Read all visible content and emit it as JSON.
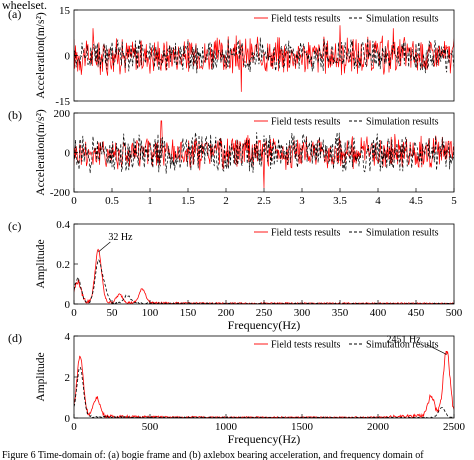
{
  "header_text": "wheelset.",
  "footer_text": "Figure 6 Time-domain of: (a) bogie frame and (b) axlebox bearing acceleration, and frequency domain of",
  "chart_data": [
    {
      "panel": "(a)",
      "type": "line",
      "xlabel": "",
      "ylabel": "Acceleration(m/s²)",
      "xlim": [
        0,
        5
      ],
      "ylim": [
        -15,
        15
      ],
      "yticks": [
        -15,
        0,
        15
      ],
      "xticks": [],
      "legend": "top-right",
      "series": [
        {
          "name": "Field tests results",
          "color": "#ff0000",
          "style": "solid",
          "amplitude": 6,
          "peaks": [
            [
              2.2,
              -12
            ],
            [
              0.25,
              9
            ],
            [
              3.5,
              10
            ],
            [
              4.2,
              9
            ]
          ]
        },
        {
          "name": "Simulation results",
          "color": "#000000",
          "style": "dashed",
          "amplitude": 5,
          "peaks": []
        }
      ]
    },
    {
      "panel": "(b)",
      "type": "line",
      "xlabel": "",
      "ylabel": "Acceleration(m/s²)",
      "xlim": [
        0,
        5
      ],
      "ylim": [
        -200,
        200
      ],
      "yticks": [
        -200,
        0,
        200
      ],
      "xticks": [
        0,
        0.5,
        1,
        1.5,
        2,
        2.5,
        3,
        3.5,
        4,
        4.5,
        5
      ],
      "legend": "top-right",
      "series": [
        {
          "name": "Field tests results",
          "color": "#ff0000",
          "style": "solid",
          "amplitude": 80,
          "peaks": [
            [
              1.15,
              160
            ],
            [
              2.5,
              -180
            ]
          ]
        },
        {
          "name": "Simulation results",
          "color": "#000000",
          "style": "dashed",
          "amplitude": 95,
          "peaks": []
        }
      ]
    },
    {
      "panel": "(c)",
      "type": "line",
      "xlabel": "Frequency(Hz)",
      "ylabel": "Amplitude",
      "xlim": [
        0,
        500
      ],
      "ylim": [
        0,
        0.4
      ],
      "yticks": [
        0,
        0.2,
        0.4
      ],
      "xticks": [
        0,
        50,
        100,
        150,
        200,
        250,
        300,
        350,
        400,
        450,
        500
      ],
      "legend": "top-right",
      "annotation": {
        "text": "32 Hz",
        "x": 32,
        "y": 0.26
      },
      "series": [
        {
          "name": "Field tests results",
          "color": "#ff0000",
          "style": "solid",
          "peaks": [
            [
              32,
              0.26
            ],
            [
              5,
              0.1
            ],
            [
              90,
              0.07
            ],
            [
              60,
              0.04
            ]
          ]
        },
        {
          "name": "Simulation results",
          "color": "#000000",
          "style": "dashed",
          "peaks": [
            [
              32,
              0.2
            ],
            [
              5,
              0.12
            ],
            [
              40,
              0.07
            ],
            [
              70,
              0.04
            ]
          ]
        }
      ]
    },
    {
      "panel": "(d)",
      "type": "line",
      "xlabel": "Frequency(Hz)",
      "ylabel": "Amplitude",
      "xlim": [
        0,
        2500
      ],
      "ylim": [
        0,
        4
      ],
      "yticks": [
        0,
        2,
        4
      ],
      "xticks": [
        0,
        500,
        1000,
        1500,
        2000,
        2500
      ],
      "legend": "top-right",
      "annotation": {
        "text": "2451 Hz",
        "x": 2451,
        "y": 3.1
      },
      "series": [
        {
          "name": "Field tests results",
          "color": "#ff0000",
          "style": "solid",
          "peaks": [
            [
              40,
              2.9
            ],
            [
              2451,
              3.1
            ],
            [
              2350,
              0.9
            ],
            [
              150,
              0.9
            ]
          ]
        },
        {
          "name": "Simulation results",
          "color": "#000000",
          "style": "dashed",
          "peaks": [
            [
              40,
              2.4
            ],
            [
              2420,
              0.5
            ]
          ]
        }
      ]
    }
  ]
}
